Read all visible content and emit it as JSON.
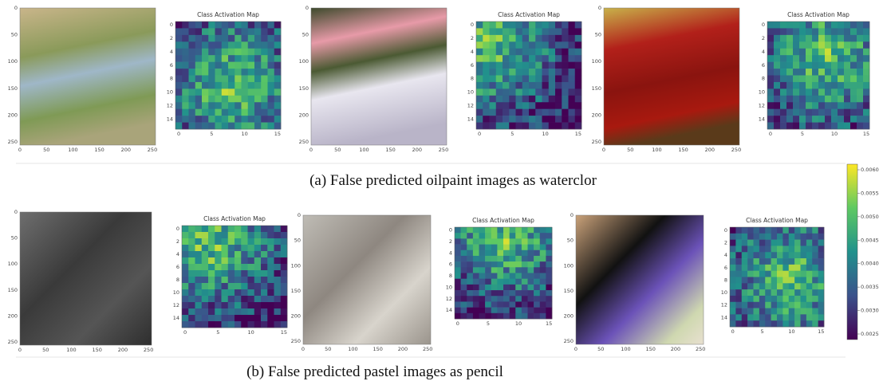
{
  "panels": [
    {
      "caption": "(a) False predicted oilpaint images as waterclor",
      "cam_titles": [
        "Class Activation Map",
        "Class Activation Map",
        "Class Activation Map"
      ]
    },
    {
      "caption": "(b) False predicted pastel images as pencil",
      "cam_titles": [
        "Class Activation Map",
        "Class Activation Map",
        "Class Activation Map"
      ]
    }
  ],
  "image_axis": {
    "xticks": [
      0,
      50,
      100,
      150,
      200,
      250
    ],
    "yticks": [
      0,
      50,
      100,
      150,
      200,
      250
    ]
  },
  "cam_axis": {
    "xticks": [
      0,
      5,
      10,
      15
    ],
    "yticks": [
      0,
      2,
      4,
      6,
      8,
      10,
      12,
      14
    ]
  },
  "colorbar": {
    "ticks": [
      "0.0060",
      "0.0055",
      "0.0050",
      "0.0045",
      "0.0040",
      "0.0035",
      "0.0030",
      "0.0025"
    ]
  }
}
